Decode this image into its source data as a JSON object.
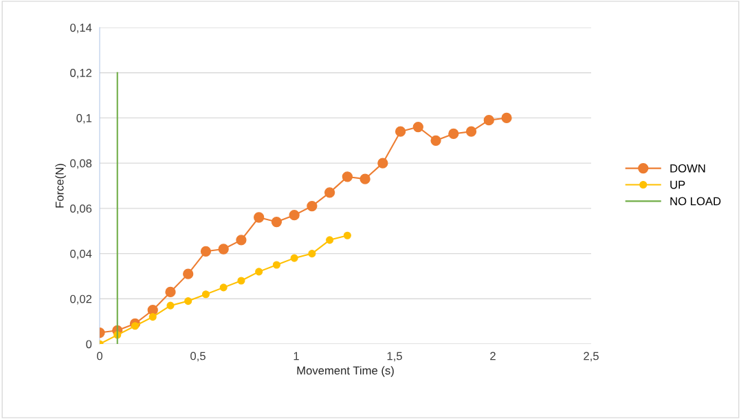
{
  "chart_data": {
    "type": "line",
    "xlabel": "Movement Time (s)",
    "ylabel": "Force(N)",
    "xlim": [
      0,
      2.5
    ],
    "xticks": [
      {
        "value": 0,
        "label": "0"
      },
      {
        "value": 0.5,
        "label": "0,5"
      },
      {
        "value": 1,
        "label": "1"
      },
      {
        "value": 1.5,
        "label": "1,5"
      },
      {
        "value": 2,
        "label": "2"
      },
      {
        "value": 2.5,
        "label": "2,5"
      }
    ],
    "ylim": [
      0,
      0.14
    ],
    "yticks": [
      {
        "value": 0,
        "label": "0"
      },
      {
        "value": 0.02,
        "label": "0,02"
      },
      {
        "value": 0.04,
        "label": "0,04"
      },
      {
        "value": 0.06,
        "label": "0,06"
      },
      {
        "value": 0.08,
        "label": "0,08"
      },
      {
        "value": 0.1,
        "label": "0,1"
      },
      {
        "value": 0.12,
        "label": "0,12"
      },
      {
        "value": 0.14,
        "label": "0,14"
      }
    ],
    "grid": "y",
    "legend": "right",
    "marker": "circle",
    "series": [
      {
        "name": "DOWN",
        "color": "#ed7d31",
        "x": [
          0,
          0.09,
          0.18,
          0.27,
          0.36,
          0.45,
          0.54,
          0.63,
          0.72,
          0.81,
          0.9,
          0.99,
          1.08,
          1.17,
          1.26,
          1.35,
          1.44,
          1.53,
          1.62,
          1.71,
          1.8,
          1.89,
          1.98,
          2.07
        ],
        "values": [
          0.005,
          0.006,
          0.009,
          0.015,
          0.023,
          0.031,
          0.041,
          0.042,
          0.046,
          0.056,
          0.054,
          0.057,
          0.061,
          0.067,
          0.074,
          0.073,
          0.08,
          0.094,
          0.096,
          0.09,
          0.093,
          0.094,
          0.099,
          0.1
        ]
      },
      {
        "name": "UP",
        "color": "#ffc000",
        "x": [
          0,
          0.09,
          0.18,
          0.27,
          0.36,
          0.45,
          0.54,
          0.63,
          0.72,
          0.81,
          0.9,
          0.99,
          1.08,
          1.17,
          1.26
        ],
        "values": [
          0.0,
          0.004,
          0.008,
          0.012,
          0.017,
          0.019,
          0.022,
          0.025,
          0.028,
          0.032,
          0.035,
          0.038,
          0.04,
          0.046,
          0.048
        ]
      },
      {
        "name": "NO LOAD",
        "color": "#70ad47",
        "marker": "none",
        "x": [
          0.09,
          0.09
        ],
        "values": [
          0,
          0.12
        ]
      }
    ]
  }
}
